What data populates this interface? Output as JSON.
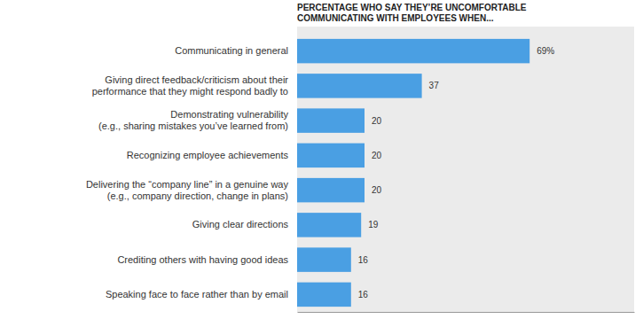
{
  "chart_data": {
    "type": "bar",
    "orientation": "horizontal",
    "title": "PERCENTAGE WHO SAY THEY’RE UNCOMFORTABLE COMMUNICATING WITH EMPLOYEES WHEN...",
    "categories": [
      "Communicating in general",
      "Giving direct feedback/criticism about their performance that they might respond badly to",
      "Demonstrating vulnerability (e.g., sharing mistakes you’ve learned from)",
      "Recognizing employee achievements",
      "Delivering the “company line” in a genuine way (e.g., company direction, change in plans)",
      "Giving clear directions",
      "Crediting others with having good ideas",
      "Speaking face to face rather than by email"
    ],
    "values": [
      69,
      37,
      20,
      20,
      20,
      19,
      16,
      16
    ],
    "value_labels": [
      "69%",
      "37",
      "20",
      "20",
      "20",
      "19",
      "16",
      "16"
    ],
    "color": "#4a9fe3",
    "xlim": [
      0,
      100
    ],
    "xticks": [],
    "grid": false,
    "data_labels": true,
    "tick_labels": "y"
  }
}
